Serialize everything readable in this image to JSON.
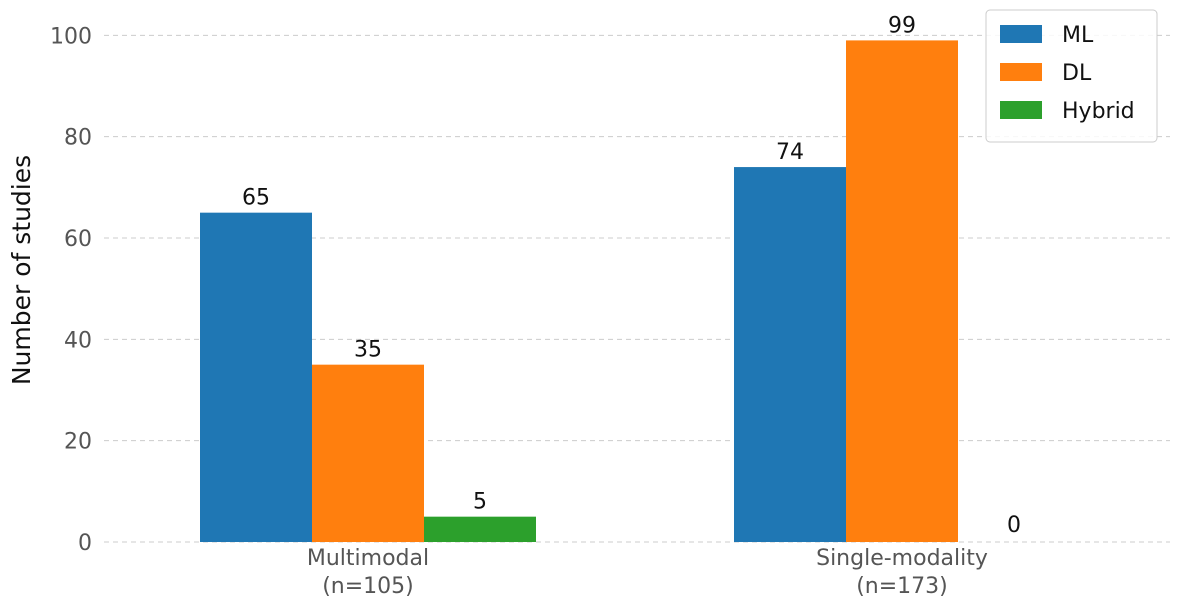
{
  "chart_data": {
    "type": "bar",
    "title": "",
    "xlabel": "",
    "ylabel": "Number of studies",
    "ylim": [
      0,
      105
    ],
    "yticks": [
      0,
      20,
      40,
      60,
      80,
      100
    ],
    "grid": "y-dashed",
    "legend_position": "top-right",
    "categories": [
      {
        "line1": "Multimodal",
        "line2": "(n=105)"
      },
      {
        "line1": "Single-modality",
        "line2": "(n=173)"
      }
    ],
    "series": [
      {
        "name": "ML",
        "color": "#1f77b4",
        "values": [
          65,
          74
        ]
      },
      {
        "name": "DL",
        "color": "#ff7f0e",
        "values": [
          35,
          99
        ]
      },
      {
        "name": "Hybrid",
        "color": "#2ca02c",
        "values": [
          5,
          0
        ]
      }
    ]
  }
}
